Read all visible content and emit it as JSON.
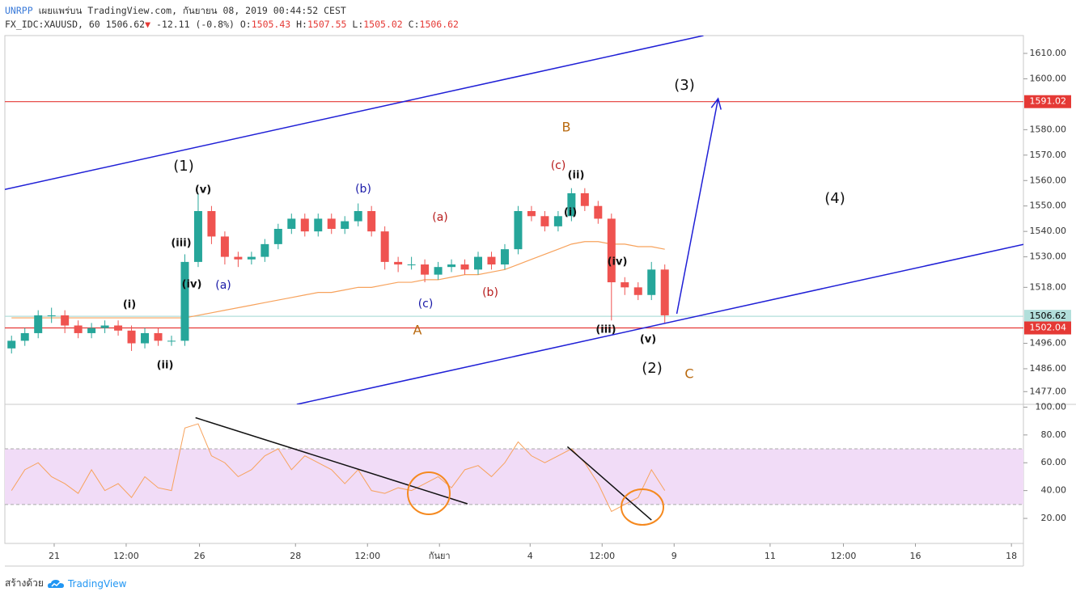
{
  "header": {
    "publisher": "UNRPP",
    "published": "เผยแพร่บน TradingView.com, กันยายน 08, 2019 00:44:52 CEST",
    "symbol": "FX_IDC:XAUUSD, 60",
    "last": "1506.62",
    "arrow": "▼",
    "change": "-12.11 (-0.8%)",
    "ohlc": [
      {
        "label": "O:",
        "value": "1505.43"
      },
      {
        "label": "H:",
        "value": "1507.55"
      },
      {
        "label": "L:",
        "value": "1505.02"
      },
      {
        "label": "C:",
        "value": "1506.62"
      }
    ]
  },
  "footer": {
    "made_with": "สร้างด้วย",
    "brand": "TradingView"
  },
  "chart_data": [
    {
      "type": "candlestick",
      "x": [
        0,
        1,
        2,
        3,
        4,
        5,
        6,
        7,
        8,
        9,
        10,
        11,
        12,
        13,
        14,
        15,
        16,
        17,
        18,
        19,
        20,
        21,
        22,
        23,
        24,
        25,
        26,
        27,
        28,
        29,
        30,
        31,
        32,
        33,
        34,
        35,
        36,
        37,
        38,
        39,
        40,
        41,
        42,
        43,
        44,
        45,
        46,
        47,
        48,
        49
      ],
      "open": [
        1494,
        1497,
        1500,
        1507,
        1507,
        1503,
        1500,
        1502,
        1503,
        1501,
        1496,
        1500,
        1497,
        1497,
        1528,
        1548,
        1538,
        1530,
        1529,
        1530,
        1535,
        1541,
        1545,
        1540,
        1545,
        1541,
        1544,
        1548,
        1540,
        1528,
        1527,
        1527,
        1523,
        1526,
        1527,
        1525,
        1530,
        1527,
        1533,
        1548,
        1546,
        1542,
        1546,
        1555,
        1550,
        1545,
        1520,
        1518,
        1515,
        1525
      ],
      "high": [
        1499,
        1502,
        1509,
        1510,
        1509,
        1505,
        1504,
        1505,
        1505,
        1503,
        1502,
        1502,
        1499,
        1531,
        1555,
        1550,
        1540,
        1532,
        1532,
        1537,
        1543,
        1547,
        1547,
        1547,
        1547,
        1546,
        1551,
        1550,
        1542,
        1530,
        1530,
        1529,
        1528,
        1529,
        1529,
        1532,
        1532,
        1535,
        1550,
        1550,
        1548,
        1548,
        1557,
        1557,
        1552,
        1547,
        1522,
        1520,
        1528,
        1527
      ],
      "low": [
        1492,
        1495,
        1498,
        1504,
        1500,
        1498,
        1498,
        1500,
        1499,
        1493,
        1494,
        1495,
        1495,
        1495,
        1526,
        1535,
        1527,
        1526,
        1527,
        1528,
        1533,
        1539,
        1538,
        1538,
        1539,
        1539,
        1542,
        1538,
        1525,
        1524,
        1525,
        1520,
        1521,
        1524,
        1523,
        1523,
        1525,
        1525,
        1531,
        1544,
        1540,
        1540,
        1544,
        1548,
        1543,
        1505,
        1515,
        1513,
        1513,
        1504
      ],
      "close": [
        1497,
        1500,
        1507,
        1507,
        1503,
        1500,
        1502,
        1503,
        1501,
        1496,
        1500,
        1497,
        1497,
        1528,
        1548,
        1538,
        1530,
        1529,
        1530,
        1535,
        1541,
        1545,
        1540,
        1545,
        1541,
        1544,
        1548,
        1540,
        1528,
        1527,
        1527,
        1523,
        1526,
        1527,
        1525,
        1530,
        1527,
        1533,
        1548,
        1546,
        1542,
        1546,
        1555,
        1550,
        1545,
        1520,
        1518,
        1515,
        1525,
        1507
      ],
      "up_color": "#26a69a",
      "down_color": "#ef5350",
      "overlay_color": "#f7a25c",
      "overlay_values": [
        1506,
        1506,
        1506,
        1506,
        1506,
        1506,
        1506,
        1506,
        1506,
        1506,
        1506,
        1506,
        1506,
        1506,
        1507,
        1508,
        1509,
        1510,
        1511,
        1512,
        1513,
        1514,
        1515,
        1516,
        1516,
        1517,
        1518,
        1518,
        1519,
        1520,
        1520,
        1521,
        1521,
        1522,
        1523,
        1523,
        1524,
        1525,
        1527,
        1529,
        1531,
        1533,
        1535,
        1536,
        1536,
        1535,
        1535,
        1534,
        1534,
        1533
      ],
      "xlim": [
        -0.5,
        75.9
      ],
      "ylim": [
        1472,
        1617
      ],
      "yticks": [
        {
          "value": 1610,
          "label": "1610.00"
        },
        {
          "value": 1600,
          "label": "1600.00"
        },
        {
          "value": 1580,
          "label": "1580.00"
        },
        {
          "value": 1570,
          "label": "1570.00"
        },
        {
          "value": 1560,
          "label": "1560.00"
        },
        {
          "value": 1550,
          "label": "1550.00"
        },
        {
          "value": 1540,
          "label": "1540.00"
        },
        {
          "value": 1530,
          "label": "1530.00"
        },
        {
          "value": 1518,
          "label": "1518.00"
        },
        {
          "value": 1496,
          "label": "1496.00"
        },
        {
          "value": 1486,
          "label": "1486.00"
        },
        {
          "value": 1477,
          "label": "1477.00"
        }
      ],
      "hlines": [
        {
          "value": 1591.02,
          "color": "#e53935",
          "text_color": "#ffffff"
        },
        {
          "value": 1506.62,
          "color": "#b2dfdb",
          "text_color": "#000000"
        },
        {
          "value": 1502.04,
          "color": "#e53935",
          "text_color": "#ffffff"
        }
      ],
      "lines": [
        {
          "points": [
            [
              -0.5,
              1556.5
            ],
            [
              51.9,
              1617
            ]
          ],
          "color": "#1f1fd6",
          "arrow": false
        },
        {
          "points": [
            [
              21.4,
              1472
            ],
            [
              75.9,
              1534.9
            ]
          ],
          "color": "#1f1fd6",
          "arrow": false
        },
        {
          "points": [
            [
              49.9,
              1507.6
            ],
            [
              53.0,
              1592.2
            ]
          ],
          "color": "#1f1fd6",
          "arrow": true
        }
      ],
      "annotations": [
        {
          "text": "(1)",
          "color": "#111111"
        },
        {
          "text": "(v)",
          "color": "#111111"
        },
        {
          "text": "(iii)",
          "color": "#111111"
        },
        {
          "text": "(iv)",
          "color": "#111111"
        },
        {
          "text": "(i)",
          "color": "#111111"
        },
        {
          "text": "(ii)",
          "color": "#111111"
        },
        {
          "text": "(a)",
          "color": "#1a1aa8"
        },
        {
          "text": "(b)",
          "color": "#1a1aa8"
        },
        {
          "text": "(c)",
          "color": "#1a1aa8"
        },
        {
          "text": "(a)",
          "color": "#b71c1c"
        },
        {
          "text": "(b)",
          "color": "#b71c1c"
        },
        {
          "text": "(c)",
          "color": "#b71c1c"
        },
        {
          "text": "(ii)",
          "color": "#111111"
        },
        {
          "text": "(i)",
          "color": "#111111"
        },
        {
          "text": "(iv)",
          "color": "#111111"
        },
        {
          "text": "(iii)",
          "color": "#111111"
        },
        {
          "text": "(v)",
          "color": "#111111"
        },
        {
          "text": "(2)",
          "color": "#111111"
        },
        {
          "text": "(3)",
          "color": "#111111"
        },
        {
          "text": "(4)",
          "color": "#111111"
        },
        {
          "text": "A",
          "color": "#b8690f"
        },
        {
          "text": "B",
          "color": "#b8690f"
        },
        {
          "text": "C",
          "color": "#b8690f"
        }
      ]
    },
    {
      "type": "line",
      "x": [
        0,
        1,
        2,
        3,
        4,
        5,
        6,
        7,
        8,
        9,
        10,
        11,
        12,
        13,
        14,
        15,
        16,
        17,
        18,
        19,
        20,
        21,
        22,
        23,
        24,
        25,
        26,
        27,
        28,
        29,
        30,
        31,
        32,
        33,
        34,
        35,
        36,
        37,
        38,
        39,
        40,
        41,
        42,
        43,
        44,
        45,
        46,
        47,
        48,
        49
      ],
      "values": [
        40,
        55,
        60,
        50,
        45,
        38,
        55,
        40,
        45,
        35,
        50,
        42,
        40,
        85,
        88,
        65,
        60,
        50,
        55,
        65,
        70,
        55,
        65,
        60,
        55,
        45,
        55,
        40,
        38,
        42,
        40,
        45,
        50,
        42,
        55,
        58,
        50,
        60,
        75,
        65,
        60,
        65,
        70,
        60,
        45,
        25,
        30,
        35,
        55,
        40
      ],
      "color": "#f7a25c",
      "band": [
        30,
        70
      ],
      "band_color": "#f1dcf7",
      "xlim": [
        -0.5,
        75.9
      ],
      "ylim": [
        2,
        102
      ],
      "yticks": [
        {
          "value": 100,
          "label": "100.00"
        },
        {
          "value": 80,
          "label": "80.00"
        },
        {
          "value": 60,
          "label": "60.00"
        },
        {
          "value": 40,
          "label": "40.00"
        },
        {
          "value": 20,
          "label": "20.00"
        }
      ],
      "xticks": [
        {
          "value": 3.2,
          "label": "21"
        },
        {
          "value": 8.6,
          "label": "12:00"
        },
        {
          "value": 14.1,
          "label": "26"
        },
        {
          "value": 21.3,
          "label": "28"
        },
        {
          "value": 26.7,
          "label": "12:00"
        },
        {
          "value": 32.1,
          "label": "กันยา"
        },
        {
          "value": 38.9,
          "label": "4"
        },
        {
          "value": 44.3,
          "label": "12:00"
        },
        {
          "value": 49.7,
          "label": "9"
        },
        {
          "value": 56.9,
          "label": "11"
        },
        {
          "value": 62.4,
          "label": "12:00"
        },
        {
          "value": 67.8,
          "label": "16"
        },
        {
          "value": 75,
          "label": "18"
        }
      ],
      "lines": [
        {
          "points": [
            [
              13.8,
              92.4
            ],
            [
              34.2,
              30.5
            ]
          ],
          "color": "#111111",
          "arrow": false
        },
        {
          "points": [
            [
              41.7,
              71.5
            ],
            [
              48,
              18.8
            ]
          ],
          "color": "#111111",
          "arrow": false
        }
      ]
    }
  ]
}
